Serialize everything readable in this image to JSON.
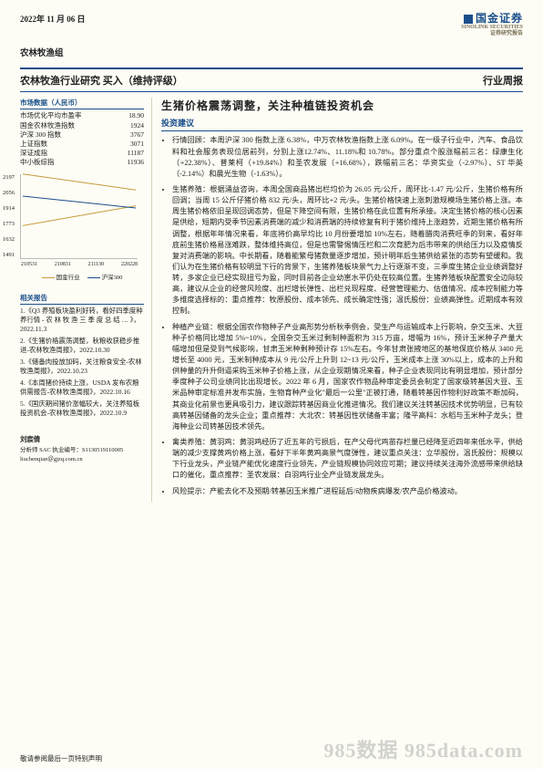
{
  "meta": {
    "date": "2022年 11 月 06 日",
    "company_logo_top": "国金证券",
    "company_logo_sub": "SINOLINK SECURITIES",
    "company_logo_note": "证券研究报告",
    "group": "农林牧渔组",
    "headline_left": "农林牧渔行业研究  买入（维持评级）",
    "headline_right": "行业周报"
  },
  "market": {
    "title": "市场数据（人民币）",
    "rows": [
      {
        "k": "市场优化平均市盈率",
        "v": "18.90"
      },
      {
        "k": "国金农林牧渔指数",
        "v": "1924"
      },
      {
        "k": "沪深 300 指数",
        "v": "3767"
      },
      {
        "k": "上证指数",
        "v": "3071"
      },
      {
        "k": "深证成指",
        "v": "11187"
      },
      {
        "k": "中小板综指",
        "v": "11936"
      }
    ]
  },
  "chart": {
    "y_ticks": [
      "2197",
      "2056",
      "1914",
      "1773",
      "1632",
      "1491"
    ],
    "x_ticks": [
      "210531",
      "210831",
      "211130",
      "220228"
    ],
    "series": [
      {
        "name": "国金行业",
        "color": "#c69a3a"
      },
      {
        "name": "沪深300",
        "color": "#1a4f8b"
      }
    ]
  },
  "reports": {
    "title": "相关报告",
    "items": [
      "1.《Q3 养殖板块盈利好转，看好四季度种养行情 - 农 林 牧 渔 三 季 度 总 结 … 》，2022.11.3",
      "2.《生猪价格震荡调整，秋粮收获稳步推进-农林牧渔周报》，2022.10.30",
      "3.《储备肉投放加码，关注粮食安全-农林牧渔周报》，2022.10.23",
      "4.《本周猪价持续上涨，USDA 发布农粮供需报告-农林牧渔周报》，2022.10.16",
      "5.《国庆期间猪价涨幅较大，关注养殖板投资机会-农林牧渔周报》，2022.10.9"
    ]
  },
  "analyst": {
    "name": "刘宸倩",
    "cert_label": "分析师 SAC 执业编号：",
    "cert": "S1130519110005",
    "email": "liuchenqian＠gjzq.com.cn"
  },
  "main": {
    "title": "生猪价格震荡调整，关注种植链投资机会",
    "subtitle": "投资建议",
    "bullets": [
      "行情回顾：本周沪深 300 指数上涨 6.38%，中万农林牧渔指数上涨 6.09%。在一级子行业中，汽车、食品饮料和社会服务表现位居前列，分别上涨12.74%、11.18%和 10.78%。部分重点个股涨幅前三名：绿康生化（+22.38%）、普莱柯（+19.84%）和圣农发展（+16.68%），跌幅前三名：华资实业（-2.97%）、ST 华英（-2.14%）和晨光生物（-1.63%）。",
      "生猪养殖：根据涌益咨询，本周全国商品猪出栏均价为 26.05 元/公斤，周环比-1.47 元/公斤，生猪价格有所回调；当周 15 公斤仔猪价格 832 元/头，周环比+2 元/头。生猪价格快速上涨刺激规模场生猪价格上涨。本周生猪价格依旧呈现回调态势，但是下降空间有限，生猪价格在此位置有所承接。决定生猪价格的核心因素是供给，短期内受季节因素消费端的减少和消费端的持续修复有利于猪价维持上涨趋势，近期生猪价格有所调整，根据年年情况来看，年底将价高早均比 10 月份要增加 10%左右，随着腊肉消费旺季的到来，看好年底前生猪价格易涨难跌，整体维持高位，但是也需警惕情压栏和二次育肥为后市带来的供给压力以及疫情反复对消费端的影响。中长期看，随着能繁母猪数量逐步增加，预计明年后生猪供给紧张的态势有望缓和。我们认为在生猪价格有较明显下行的背景下，生猪养殖板块景气力上行逐渐不变，三季度生猪企业业绩调整好转，多家企业已经实现扭亏为盈，同时目前各企业幼崽水平仍处在较高位置。生猪养殖板块配置安全边际较高，建议从企业的经营风险度、出栏增长弹性、出栏兑现程度、经营管理能力、估值情况、成本控制能力等多维度选择标的：重点推荐：牧原股份、成本领先、成长确定性强；温氏股份：业绩高弹性。近期成本有效控制。",
      "种植产业链：根据全国农作物种子产业高形势分析秋季例会，受生产与运输成本上行影响，杂交玉米、大豆种子价格同比增加 5%~10%，全国杂交玉米过剩制种面积为 315 万亩，增幅为 16%，预计玉米种子产量大幅增加但是受到气候影响，甘肃玉米种剩种预计存 15%左右。今年甘肃张掖地区的基地保底价格从 3400 元增长至 4000 元，玉米制种成本从 9 元/公斤上升到 12~13 元/公斤，玉米成本上涨 30%以上，成本的上升和供种量的升升倒逼采购玉米种子价格上涨，从企业现期情况来看，种子企业表现同比有明显增加，预计部分季度种子公司业绩同比出现增长。2022 年 6 月，国家农作物品种审定委员会制定了国家级转基因大豆、玉米品种审定标准并发布实施，生物育种产业化\"最后一公里\"正被打通，随着转基因作物利好政策不断加码，其商业化前景也更具吸引力，建议跟踪转基因商业化推进情况。我们建议关注转基因技术优势明显，已有较高转基因储备的龙头企业；重点推荐：大北农：转基因性状储备丰富；隆平高科：水稻与玉米种子龙头；登海种业公司转基因技术领先。",
      "禽类养殖：黄羽鸡：黄羽鸡经历了近五年的亏损后，在产父母代鸡苗存栏量已经降至近四年来低水平，供给端的减少支撑黄鸡价格上涨，看好下半年黄鸡高景气度弹性，建议重点关注：立华股份，温氏股份：规模以下行业龙头，产业链产能优化速度行业领先，产业链规模协同效应可期；建议持续关注海外流感带来供给缺口的催化，重点推荐：圣农发展：白羽鸡行业全产业链发展龙头。",
      "风险提示：产能去化不及预期/转基因玉米推广进程延后/动物疾病爆发/农产品价格波动。"
    ]
  },
  "footer": {
    "left": "敬请参阅最后一页特别声明",
    "watermark": "985数据 985data.com"
  }
}
